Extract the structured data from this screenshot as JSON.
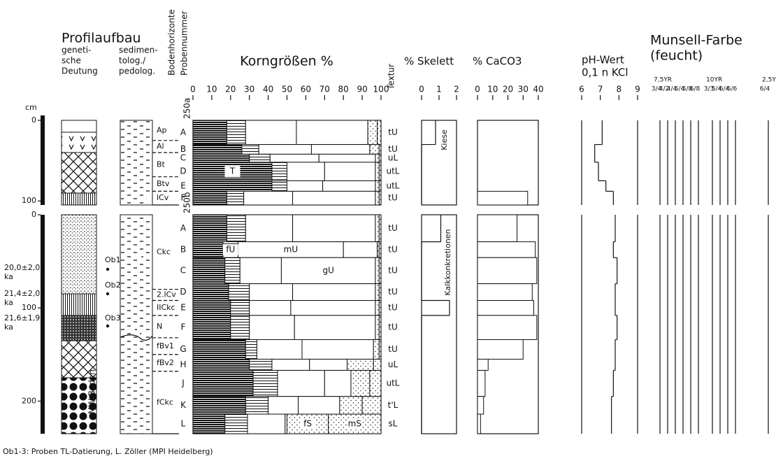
{
  "header": {
    "title": "Profilaufbau",
    "genetic": [
      "geneti-",
      "sche",
      "Deutung"
    ],
    "sedimentological": [
      "sedimen-",
      "tolog./",
      "pedolog."
    ],
    "horizons": "Bodenhorizonte",
    "sample_number": "Probennummer",
    "grain_size": "Korngrößen %",
    "texture": "Textur",
    "skeleton": "% Skelett",
    "caco3": "% CaCO3",
    "ph": [
      "pH-Wert",
      "0,1 n KCl"
    ],
    "munsell": [
      "Munsell-Farbe",
      "(feucht)"
    ]
  },
  "depth_unit": "cm",
  "grain_fractions": [
    "T",
    "fU",
    "mU",
    "gU",
    "fS",
    "mS"
  ],
  "grain_ticks": [
    0,
    10,
    20,
    30,
    40,
    50,
    60,
    70,
    80,
    90,
    100
  ],
  "skeleton_ticks": [
    0,
    1,
    2
  ],
  "caco3_ticks": [
    0,
    10,
    20,
    30,
    40
  ],
  "ph_ticks": [
    6,
    7,
    8,
    9
  ],
  "profiles": [
    {
      "id": "250a",
      "depth_range": [
        0,
        105
      ],
      "depth_ticks": [
        0,
        100
      ],
      "horizons": [
        {
          "label": "Ap",
          "top": 0,
          "bottom": 25
        },
        {
          "label": "Al",
          "top": 25,
          "bottom": 40
        },
        {
          "label": "Bt",
          "top": 40,
          "bottom": 70
        },
        {
          "label": "Btv",
          "top": 70,
          "bottom": 88
        },
        {
          "label": "lCv",
          "top": 88,
          "bottom": 105
        }
      ],
      "samples": [
        {
          "label": "A",
          "top": 0,
          "bottom": 30,
          "texture": "tU",
          "grain": [
            18,
            10,
            27,
            38,
            5,
            2
          ],
          "skeleton": 0.8,
          "caco3": 0,
          "ph": 7.1
        },
        {
          "label": "B",
          "top": 30,
          "bottom": 42,
          "texture": "tU",
          "grain": [
            26,
            9,
            28,
            31,
            5,
            1
          ],
          "skeleton": 0,
          "caco3": 0,
          "ph": 6.7
        },
        {
          "label": "C",
          "top": 42,
          "bottom": 52,
          "texture": "uL",
          "grain": [
            30,
            11,
            26,
            30,
            2,
            1
          ],
          "skeleton": 0,
          "caco3": 0,
          "ph": 6.7
        },
        {
          "label": "D",
          "top": 52,
          "bottom": 75,
          "texture": "utL",
          "grain": [
            42,
            8,
            20,
            27,
            2,
            1
          ],
          "skeleton": 0,
          "caco3": 0,
          "ph": 6.9
        },
        {
          "label": "E",
          "top": 75,
          "bottom": 88,
          "texture": "utL",
          "grain": [
            42,
            8,
            19,
            28,
            2,
            1
          ],
          "skeleton": 0,
          "caco3": 0,
          "ph": 7.3
        },
        {
          "label": "F",
          "top": 88,
          "bottom": 105,
          "texture": "tU",
          "grain": [
            18,
            9,
            26,
            44,
            2,
            1
          ],
          "skeleton": 0,
          "caco3": 33,
          "ph": 7.7
        }
      ]
    },
    {
      "id": "250b",
      "depth_range": [
        0,
        235
      ],
      "depth_ticks": [
        0,
        100,
        200
      ],
      "horizons": [
        {
          "label": "Ckc",
          "top": 0,
          "bottom": 80
        },
        {
          "label": "2.lCv",
          "top": 80,
          "bottom": 92
        },
        {
          "label": "IICkc",
          "top": 92,
          "bottom": 108
        },
        {
          "label": "N",
          "top": 108,
          "bottom": 132
        },
        {
          "label": "fBv1",
          "top": 132,
          "bottom": 150
        },
        {
          "label": "fBv2",
          "top": 150,
          "bottom": 168
        },
        {
          "label": "fCkc",
          "top": 168,
          "bottom": 235
        }
      ],
      "samples": [
        {
          "label": "A",
          "top": 0,
          "bottom": 29,
          "texture": "tU",
          "grain": [
            18,
            10,
            25,
            44,
            2,
            1
          ],
          "skeleton": 1.1,
          "caco3": 26,
          "ph": 7.8
        },
        {
          "label": "B",
          "top": 29,
          "bottom": 46,
          "texture": "tU",
          "grain": [
            16,
            8,
            56,
            18,
            1,
            1
          ],
          "skeleton": 0,
          "caco3": 38,
          "ph": 7.7
        },
        {
          "label": "C",
          "top": 46,
          "bottom": 74,
          "texture": "tU",
          "grain": [
            17,
            8,
            22,
            50,
            2,
            1
          ],
          "skeleton": 0,
          "caco3": 39,
          "ph": 7.9
        },
        {
          "label": "D",
          "top": 74,
          "bottom": 92,
          "texture": "tU",
          "grain": [
            19,
            11,
            23,
            44,
            2,
            1
          ],
          "skeleton": 0,
          "caco3": 36,
          "ph": 7.8
        },
        {
          "label": "E",
          "top": 92,
          "bottom": 108,
          "texture": "tU",
          "grain": [
            20,
            10,
            22,
            45,
            2,
            1
          ],
          "skeleton": 1.6,
          "caco3": 37,
          "ph": 7.8
        },
        {
          "label": "F",
          "top": 108,
          "bottom": 134,
          "texture": "tU",
          "grain": [
            20,
            10,
            24,
            43,
            2,
            1
          ],
          "skeleton": 0,
          "caco3": 39,
          "ph": 7.9
        },
        {
          "label": "G",
          "top": 134,
          "bottom": 155,
          "texture": "tU",
          "grain": [
            28,
            6,
            24,
            38,
            3,
            1
          ],
          "skeleton": 0,
          "caco3": 30,
          "ph": 7.8
        },
        {
          "label": "H",
          "top": 155,
          "bottom": 167,
          "texture": "uL",
          "grain": [
            30,
            12,
            20,
            20,
            14,
            4
          ],
          "skeleton": 0,
          "caco3": 7,
          "ph": 7.8
        },
        {
          "label": "J",
          "top": 167,
          "bottom": 195,
          "texture": "utL",
          "grain": [
            32,
            13,
            25,
            14,
            10,
            6
          ],
          "skeleton": 0,
          "caco3": 5,
          "ph": 7.7
        },
        {
          "label": "K",
          "top": 195,
          "bottom": 214,
          "texture": "t'L",
          "grain": [
            28,
            12,
            16,
            22,
            12,
            10
          ],
          "skeleton": 0,
          "caco3": 4,
          "ph": 7.6
        },
        {
          "label": "L",
          "top": 214,
          "bottom": 235,
          "texture": "sL",
          "grain": [
            17,
            12,
            20,
            1,
            22,
            28
          ],
          "skeleton": 0,
          "caco3": 2,
          "ph": 7.6
        }
      ]
    }
  ],
  "annotations": {
    "gravel": "Kiese",
    "concretions": "Kalkkonkretionen",
    "tl_samples": [
      "Ob1",
      "Ob2",
      "Ob3"
    ],
    "ages": [
      {
        "age": "20,0±2,0",
        "unit": "ka"
      },
      {
        "age": "21,4±2,0",
        "unit": "ka"
      },
      {
        "age": "21,6±1,9",
        "unit": "ka"
      }
    ],
    "paleosol": "MW-Boden"
  },
  "munsell": [
    {
      "hue": "7,5YR",
      "chips": [
        "3/4",
        "4/2",
        "4/4",
        "5/4",
        "5/8",
        "6/8"
      ]
    },
    {
      "hue": "10YR",
      "chips": [
        "3/3",
        "5/4",
        "6/4",
        "6/6"
      ]
    },
    {
      "hue": "2,5Y",
      "chips": [
        "6/4"
      ]
    }
  ],
  "footnote": "Ob1-3: Proben TL-Datierung, L. Zöller (MPI Heidelberg)"
}
